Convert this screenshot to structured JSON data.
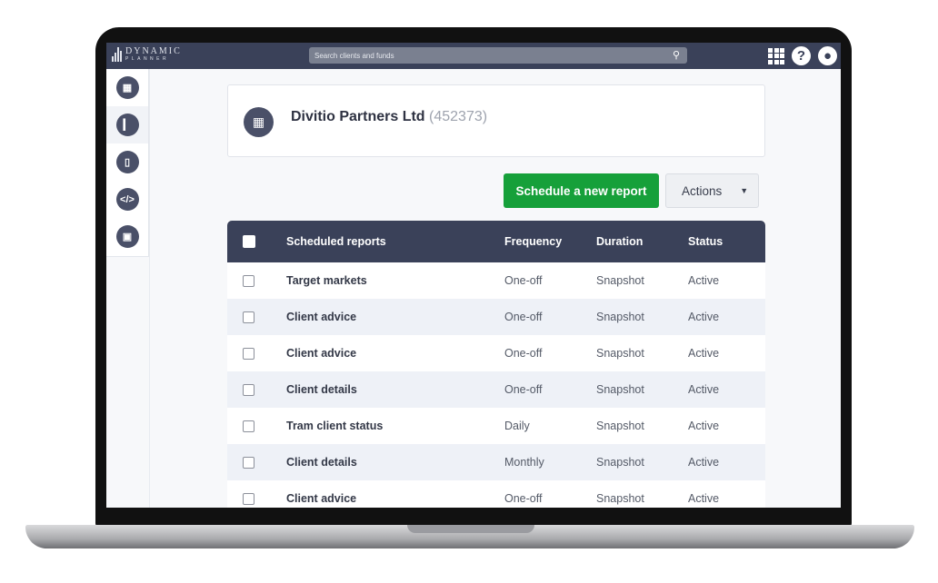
{
  "header": {
    "logo_top": "DYNAMIC",
    "logo_bottom": "PLANNER",
    "search_placeholder": "Search clients and funds"
  },
  "sidebar": {
    "items": [
      {
        "icon": "building-icon"
      },
      {
        "icon": "chart-icon"
      },
      {
        "icon": "document-icon"
      },
      {
        "icon": "code-icon"
      },
      {
        "icon": "inbox-icon"
      }
    ]
  },
  "client": {
    "name": "Divitio Partners Ltd",
    "id": "(452373)"
  },
  "toolbar": {
    "schedule_label": "Schedule a new report",
    "actions_label": "Actions"
  },
  "table": {
    "columns": [
      "Scheduled reports",
      "Frequency",
      "Duration",
      "Status"
    ],
    "rows": [
      {
        "name": "Target markets",
        "frequency": "One-off",
        "duration": "Snapshot",
        "status": "Active"
      },
      {
        "name": "Client advice",
        "frequency": "One-off",
        "duration": "Snapshot",
        "status": "Active"
      },
      {
        "name": "Client advice",
        "frequency": "One-off",
        "duration": "Snapshot",
        "status": "Active"
      },
      {
        "name": "Client details",
        "frequency": "One-off",
        "duration": "Snapshot",
        "status": "Active"
      },
      {
        "name": "Tram client status",
        "frequency": "Daily",
        "duration": "Snapshot",
        "status": "Active"
      },
      {
        "name": "Client details",
        "frequency": "Monthly",
        "duration": "Snapshot",
        "status": "Active"
      },
      {
        "name": "Client advice",
        "frequency": "One-off",
        "duration": "Snapshot",
        "status": "Active"
      }
    ]
  },
  "colors": {
    "header": "#3a4159",
    "primary": "#16a03a"
  }
}
